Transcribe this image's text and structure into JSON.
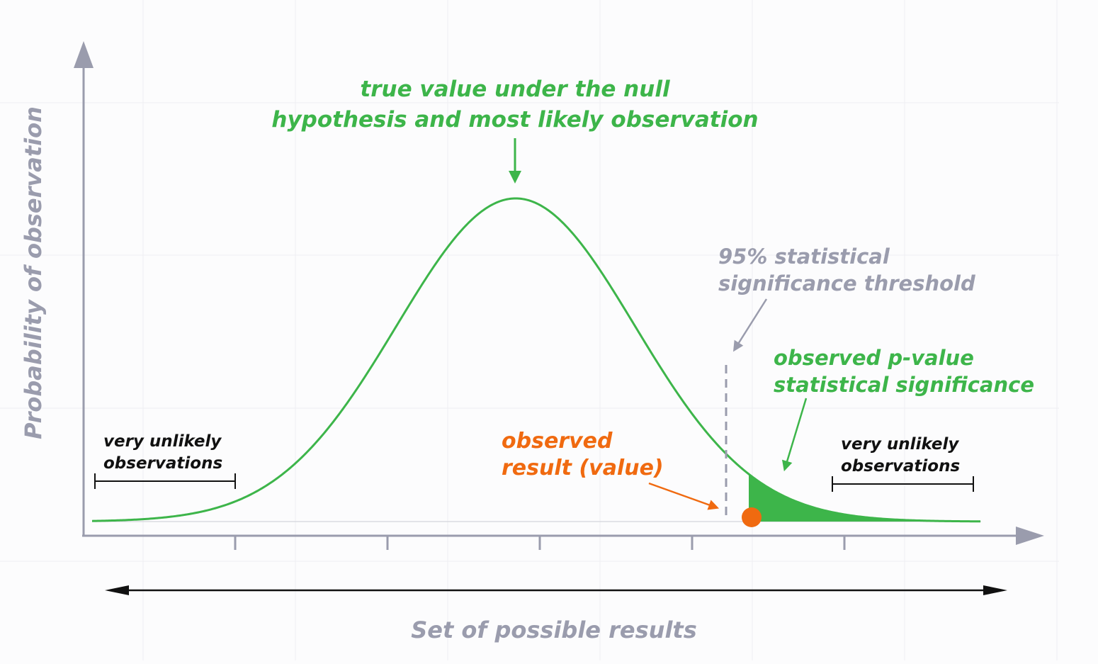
{
  "annotations": {
    "peak_line1": "true value under the null",
    "peak_line2": "hypothesis and most likely observation",
    "threshold_line1": "95% statistical",
    "threshold_line2": "significance threshold",
    "pvalue_line1": "observed p-value",
    "pvalue_line2": "statistical significance",
    "observed_line1": "observed",
    "observed_line2": "result (value)",
    "left_tail_line1": "very unlikely",
    "left_tail_line2": "observations",
    "right_tail_line1": "very unlikely",
    "right_tail_line2": "observations"
  },
  "axes": {
    "y_label": "Probability of observation",
    "x_label": "Set of possible results"
  },
  "colors": {
    "curve": "#3db54a",
    "shaded_region": "#3db54a",
    "observed_point": "#f06a10",
    "axis": "#9a9cad",
    "threshold": "#9a9cad",
    "text_black": "#111111"
  }
}
